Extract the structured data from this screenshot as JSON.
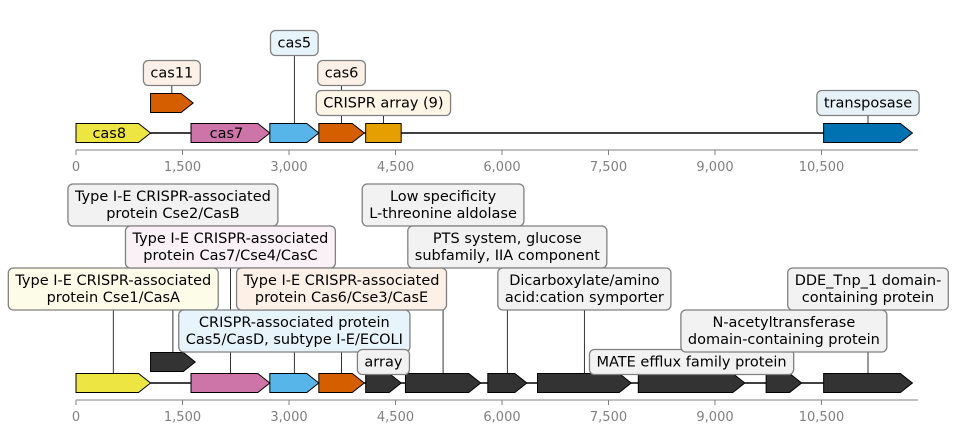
{
  "colors": {
    "yellow": "#ede542",
    "pink": "#cd75a8",
    "blue": "#57b5e9",
    "orange": "#d55e00",
    "gold": "#e69f00",
    "darkblue": "#0072b2",
    "dark": "#333333",
    "axis": "#808080",
    "box_border": "#808080"
  },
  "diagram": {
    "x_range": [
      0,
      12000
    ],
    "tick_labels": [
      "0",
      "1,500",
      "3,000",
      "4,500",
      "6,000",
      "7,500",
      "9,000",
      "10,500"
    ],
    "tick_values": [
      0,
      1500,
      3000,
      4500,
      6000,
      7500,
      9000,
      10500
    ],
    "tracks": [
      {
        "features": [
          {
            "start": 0,
            "end": 1050,
            "strand": 1,
            "color": "yellow",
            "label": "cas8",
            "label_mode": "inside"
          },
          {
            "start": 1050,
            "end": 1650,
            "strand": 1,
            "color": "orange",
            "label": "cas11",
            "label_mode": "box",
            "box_bg": "#fdf0e6",
            "level": 3,
            "lane": 1
          },
          {
            "start": 1620,
            "end": 2730,
            "strand": 1,
            "color": "pink",
            "label": "cas7",
            "label_mode": "inside"
          },
          {
            "start": 2730,
            "end": 3420,
            "strand": 1,
            "color": "blue",
            "label": "cas5",
            "label_mode": "box",
            "box_bg": "#e8f4fc",
            "level": 4
          },
          {
            "start": 3420,
            "end": 4060,
            "strand": 1,
            "color": "orange",
            "label": "cas6",
            "label_mode": "box",
            "box_bg": "#fdf0e6",
            "level": 3
          },
          {
            "start": 4080,
            "end": 4580,
            "strand": 0,
            "color": "gold",
            "label": "CRISPR array (9)",
            "label_mode": "box",
            "box_bg": "#fdf6e6",
            "level": 2
          },
          {
            "start": 10530,
            "end": 11780,
            "strand": 1,
            "color": "darkblue",
            "label": "transposase",
            "label_mode": "box",
            "box_bg": "#e6f1f8",
            "level": 2
          }
        ]
      },
      {
        "features": [
          {
            "start": 0,
            "end": 1050,
            "strand": 1,
            "color": "yellow",
            "label": "Type I-E CRISPR-associated\nprotein Cse1/CasA",
            "label_mode": "box",
            "box_bg": "#fdfce9",
            "level": 3
          },
          {
            "start": 1050,
            "end": 1680,
            "strand": 1,
            "color": "dark",
            "label": "Type I-E CRISPR-associated\nprotein Cse2/CasB",
            "label_mode": "box",
            "box_bg": "#f2f2f2",
            "level": 6,
            "lane": 1
          },
          {
            "start": 1620,
            "end": 2730,
            "strand": 1,
            "color": "pink",
            "label": "Type I-E CRISPR-associated\nprotein Cas7/Cse4/CasC",
            "label_mode": "box",
            "box_bg": "#faf1f6",
            "level": 5
          },
          {
            "start": 2730,
            "end": 3420,
            "strand": 1,
            "color": "blue",
            "label": "CRISPR-associated protein\nCas5/CasD, subtype I-E/ECOLI",
            "label_mode": "box",
            "box_bg": "#e8f4fc",
            "level": 2
          },
          {
            "start": 3420,
            "end": 4060,
            "strand": 1,
            "color": "orange",
            "label": "Type I-E CRISPR-associated\nprotein Cas6/Cse3/CasE",
            "label_mode": "box",
            "box_bg": "#fdf0e6",
            "level": 3
          },
          {
            "start": 4080,
            "end": 4580,
            "strand": 1,
            "color": "dark",
            "label": "array",
            "label_mode": "box",
            "box_bg": "#f2f2f2",
            "level": 1
          },
          {
            "start": 4640,
            "end": 5700,
            "strand": 1,
            "color": "dark",
            "label": "Low specificity\nL-threonine aldolase",
            "label_mode": "box",
            "box_bg": "#f2f2f2",
            "level": 6
          },
          {
            "start": 5800,
            "end": 6350,
            "strand": 1,
            "color": "dark",
            "label": "PTS system, glucose\nsubfamily, IIA component",
            "label_mode": "box",
            "box_bg": "#f2f2f2",
            "level": 4
          },
          {
            "start": 6500,
            "end": 7820,
            "strand": 1,
            "color": "dark",
            "label": "Dicarboxylate/amino\nacid:cation symporter",
            "label_mode": "box",
            "box_bg": "#f2f2f2",
            "level": 3
          },
          {
            "start": 7920,
            "end": 9420,
            "strand": 1,
            "color": "dark",
            "label": "MATE efflux family protein",
            "label_mode": "box",
            "box_bg": "#f2f2f2",
            "level": 1
          },
          {
            "start": 9720,
            "end": 10220,
            "strand": 1,
            "color": "dark",
            "label": "N-acetyltransferase\ndomain-containing protein",
            "label_mode": "box",
            "box_bg": "#f2f2f2",
            "level": 2
          },
          {
            "start": 10530,
            "end": 11780,
            "strand": 1,
            "color": "dark",
            "label": "DDE_Tnp_1 domain-\ncontaining protein",
            "label_mode": "box",
            "box_bg": "#f2f2f2",
            "level": 3
          }
        ]
      }
    ]
  }
}
